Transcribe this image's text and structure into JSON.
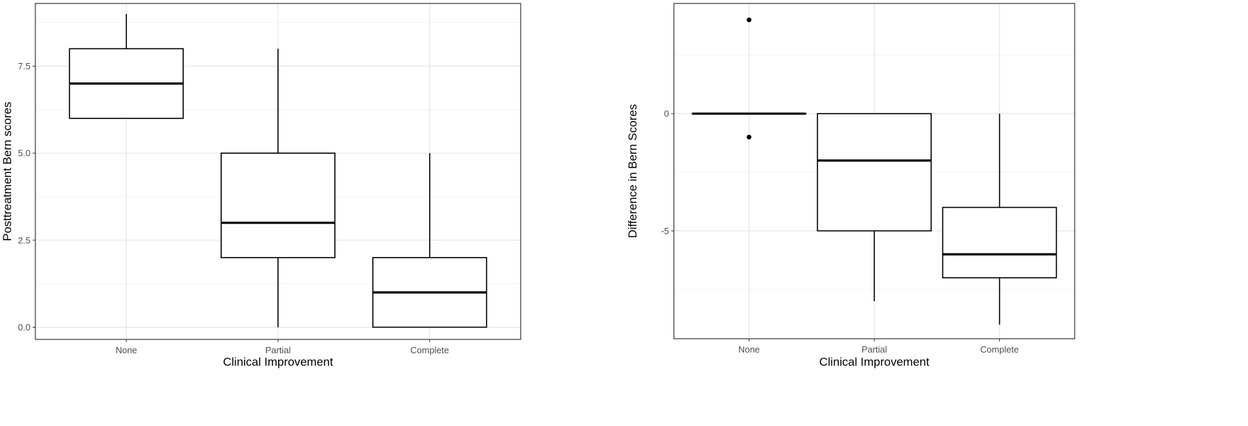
{
  "chart_data": [
    {
      "type": "box",
      "xlabel": "Clinical Improvement",
      "ylabel": "Posttreatment Bern scores",
      "categories": [
        "None",
        "Partial",
        "Complete"
      ],
      "ylim": [
        -0.35,
        9.3
      ],
      "yticks": [
        0,
        2.5,
        5,
        7.5
      ],
      "ytick_labels": [
        "0.0",
        "2.5",
        "5.0",
        "7.5"
      ],
      "grid": true,
      "boxes": [
        {
          "category": "None",
          "min": 6,
          "q1": 6,
          "median": 7,
          "q3": 8,
          "max": 9,
          "outliers": []
        },
        {
          "category": "Partial",
          "min": 0,
          "q1": 2,
          "median": 3,
          "q3": 5,
          "max": 8,
          "outliers": []
        },
        {
          "category": "Complete",
          "min": 0,
          "q1": 0,
          "median": 1,
          "q3": 2,
          "max": 5,
          "outliers": []
        }
      ]
    },
    {
      "type": "box",
      "xlabel": "Clinical Improvement",
      "ylabel": "Difference in Bern Scores",
      "categories": [
        "None",
        "Partial",
        "Complete"
      ],
      "ylim": [
        -9.6,
        4.7
      ],
      "yticks": [
        0,
        -5
      ],
      "ytick_labels": [
        "0",
        "-5"
      ],
      "grid": true,
      "boxes": [
        {
          "category": "None",
          "min": 0,
          "q1": 0,
          "median": 0,
          "q3": 0,
          "max": 0,
          "outliers": [
            4,
            -1
          ]
        },
        {
          "category": "Partial",
          "min": -8,
          "q1": -5,
          "median": -2,
          "q3": 0,
          "max": 0,
          "outliers": []
        },
        {
          "category": "Complete",
          "min": -9,
          "q1": -7,
          "median": -6,
          "q3": -4,
          "max": 0,
          "outliers": []
        }
      ]
    }
  ]
}
